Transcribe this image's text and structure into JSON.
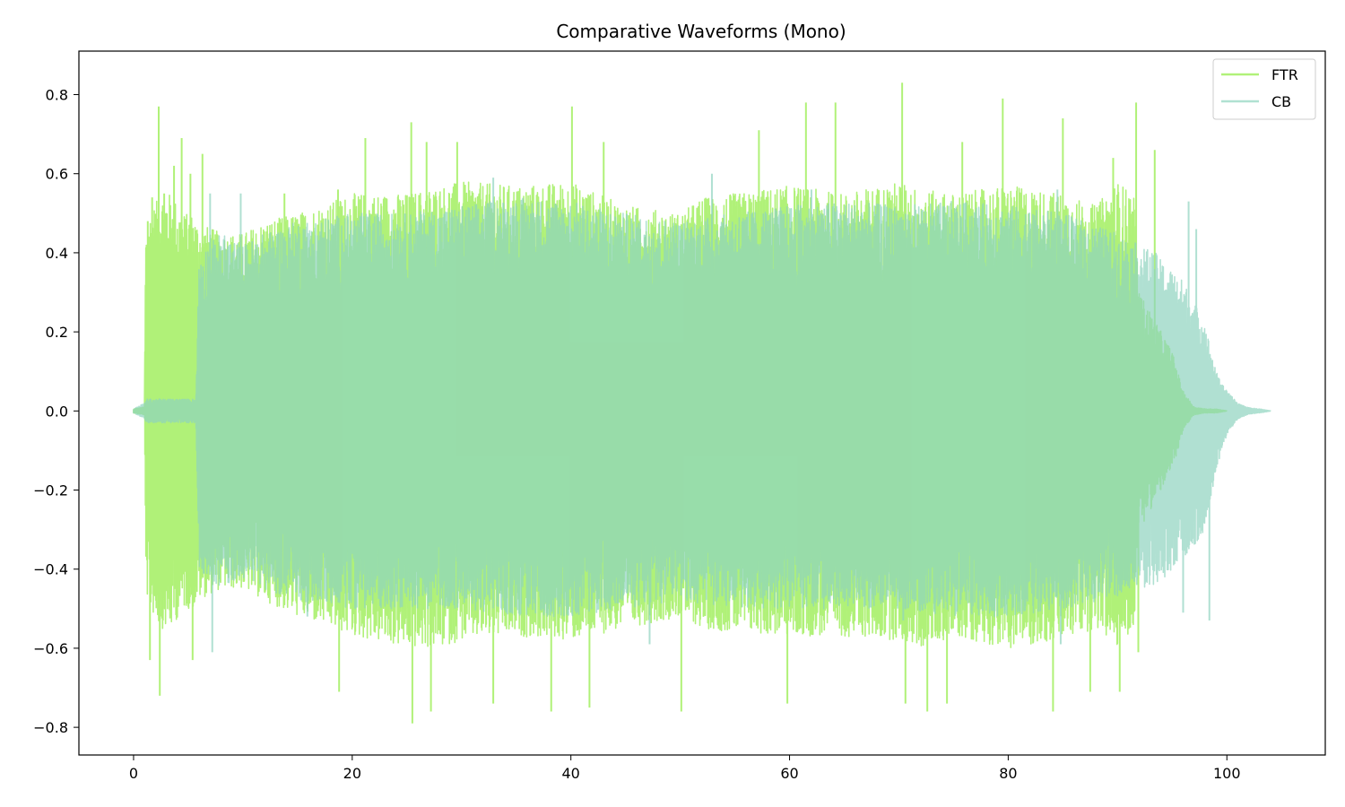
{
  "chart_data": {
    "type": "line",
    "title": "Comparative Waveforms (Mono)",
    "xlabel": "",
    "ylabel": "",
    "xlim": [
      -5,
      109
    ],
    "ylim": [
      -0.87,
      0.91
    ],
    "x_ticks": [
      0,
      20,
      40,
      60,
      80,
      100
    ],
    "x_tick_labels": [
      "0",
      "20",
      "40",
      "60",
      "80",
      "100"
    ],
    "y_ticks": [
      0.8,
      0.6,
      0.4,
      0.2,
      0.0,
      -0.2,
      -0.4,
      -0.6,
      -0.8
    ],
    "y_tick_labels": [
      "0.8",
      "0.6",
      "0.4",
      "0.2",
      "0.0",
      "−0.2",
      "−0.4",
      "−0.6",
      "−0.8"
    ],
    "grid": false,
    "legend_position": "top-right",
    "series": [
      {
        "name": "FTR",
        "color": "#a8f06a",
        "alpha": 0.9,
        "x_start": 0,
        "x_end": 100,
        "envelope": {
          "x": [
            0,
            1.0,
            1.1,
            1.5,
            2.5,
            3.5,
            4.5,
            5.5,
            5.8,
            8,
            10,
            12,
            15,
            20,
            25,
            28,
            30,
            35,
            40,
            45,
            50,
            52,
            55,
            60,
            65,
            70,
            72,
            75,
            80,
            85,
            88,
            90,
            91.5,
            92,
            95,
            96,
            97,
            98,
            99,
            100
          ],
          "pos": [
            0.005,
            0.01,
            0.45,
            0.5,
            0.55,
            0.55,
            0.5,
            0.5,
            0.48,
            0.45,
            0.45,
            0.48,
            0.5,
            0.55,
            0.55,
            0.57,
            0.58,
            0.57,
            0.58,
            0.52,
            0.5,
            0.54,
            0.55,
            0.57,
            0.55,
            0.58,
            0.56,
            0.55,
            0.57,
            0.55,
            0.52,
            0.58,
            0.55,
            0.3,
            0.15,
            0.05,
            0.01,
            0.005,
            0.005,
            0.0
          ],
          "neg": [
            -0.005,
            -0.01,
            -0.45,
            -0.5,
            -0.55,
            -0.55,
            -0.5,
            -0.5,
            -0.48,
            -0.45,
            -0.45,
            -0.48,
            -0.52,
            -0.57,
            -0.6,
            -0.6,
            -0.58,
            -0.57,
            -0.58,
            -0.55,
            -0.52,
            -0.55,
            -0.56,
            -0.57,
            -0.57,
            -0.58,
            -0.6,
            -0.57,
            -0.6,
            -0.58,
            -0.55,
            -0.6,
            -0.55,
            -0.3,
            -0.15,
            -0.05,
            -0.01,
            -0.005,
            -0.005,
            0.0
          ]
        },
        "peaks": [
          [
            1.3,
            0.48
          ],
          [
            1.7,
            0.54
          ],
          [
            2.3,
            0.77
          ],
          [
            2.8,
            0.55
          ],
          [
            3.7,
            0.62
          ],
          [
            4.4,
            0.69
          ],
          [
            5.2,
            0.6
          ],
          [
            6.3,
            0.65
          ],
          [
            13.8,
            0.55
          ],
          [
            18.7,
            0.56
          ],
          [
            21.2,
            0.69
          ],
          [
            25.4,
            0.73
          ],
          [
            26.8,
            0.68
          ],
          [
            29.6,
            0.68
          ],
          [
            40.1,
            0.77
          ],
          [
            43.0,
            0.68
          ],
          [
            57.2,
            0.71
          ],
          [
            61.5,
            0.78
          ],
          [
            64.2,
            0.78
          ],
          [
            70.3,
            0.83
          ],
          [
            75.8,
            0.68
          ],
          [
            79.5,
            0.79
          ],
          [
            85.0,
            0.74
          ],
          [
            89.6,
            0.64
          ],
          [
            91.7,
            0.78
          ],
          [
            93.4,
            0.66
          ],
          [
            1.5,
            -0.63
          ],
          [
            2.4,
            -0.72
          ],
          [
            5.4,
            -0.63
          ],
          [
            18.8,
            -0.71
          ],
          [
            25.5,
            -0.79
          ],
          [
            27.2,
            -0.76
          ],
          [
            32.9,
            -0.74
          ],
          [
            38.2,
            -0.76
          ],
          [
            41.7,
            -0.75
          ],
          [
            50.1,
            -0.76
          ],
          [
            59.8,
            -0.74
          ],
          [
            70.6,
            -0.74
          ],
          [
            72.6,
            -0.76
          ],
          [
            74.4,
            -0.74
          ],
          [
            84.1,
            -0.76
          ],
          [
            87.5,
            -0.71
          ],
          [
            90.2,
            -0.71
          ],
          [
            91.9,
            -0.61
          ]
        ]
      },
      {
        "name": "CB",
        "color": "#8fd4bf",
        "alpha": 0.7,
        "x_start": 0,
        "x_end": 104,
        "envelope": {
          "x": [
            0,
            1.0,
            1.2,
            5,
            5.7,
            6.0,
            8,
            10,
            12,
            15,
            20,
            25,
            30,
            35,
            40,
            45,
            50,
            55,
            60,
            65,
            70,
            75,
            80,
            85,
            90,
            92,
            93.5,
            94,
            96,
            98,
            99,
            100,
            101,
            102,
            103,
            104
          ],
          "pos": [
            0.005,
            0.02,
            0.03,
            0.03,
            0.03,
            0.4,
            0.45,
            0.42,
            0.45,
            0.48,
            0.5,
            0.5,
            0.52,
            0.54,
            0.53,
            0.5,
            0.48,
            0.5,
            0.52,
            0.53,
            0.52,
            0.53,
            0.52,
            0.5,
            0.45,
            0.42,
            0.4,
            0.38,
            0.33,
            0.22,
            0.1,
            0.05,
            0.02,
            0.008,
            0.005,
            0.0
          ],
          "neg": [
            -0.005,
            -0.02,
            -0.03,
            -0.03,
            -0.03,
            -0.4,
            -0.45,
            -0.42,
            -0.45,
            -0.48,
            -0.5,
            -0.5,
            -0.5,
            -0.52,
            -0.52,
            -0.5,
            -0.48,
            -0.5,
            -0.5,
            -0.5,
            -0.5,
            -0.52,
            -0.52,
            -0.5,
            -0.47,
            -0.45,
            -0.44,
            -0.43,
            -0.38,
            -0.3,
            -0.15,
            -0.06,
            -0.02,
            -0.008,
            -0.005,
            0.0
          ]
        },
        "peaks": [
          [
            7.0,
            0.55
          ],
          [
            9.8,
            0.55
          ],
          [
            32.9,
            0.59
          ],
          [
            52.9,
            0.6
          ],
          [
            62.0,
            0.56
          ],
          [
            84.5,
            0.56
          ],
          [
            96.5,
            0.53
          ],
          [
            97.2,
            0.46
          ],
          [
            7.2,
            -0.61
          ],
          [
            15.9,
            -0.52
          ],
          [
            47.2,
            -0.59
          ],
          [
            70.4,
            -0.53
          ],
          [
            84.8,
            -0.59
          ],
          [
            96.0,
            -0.51
          ],
          [
            98.4,
            -0.53
          ]
        ]
      }
    ]
  }
}
